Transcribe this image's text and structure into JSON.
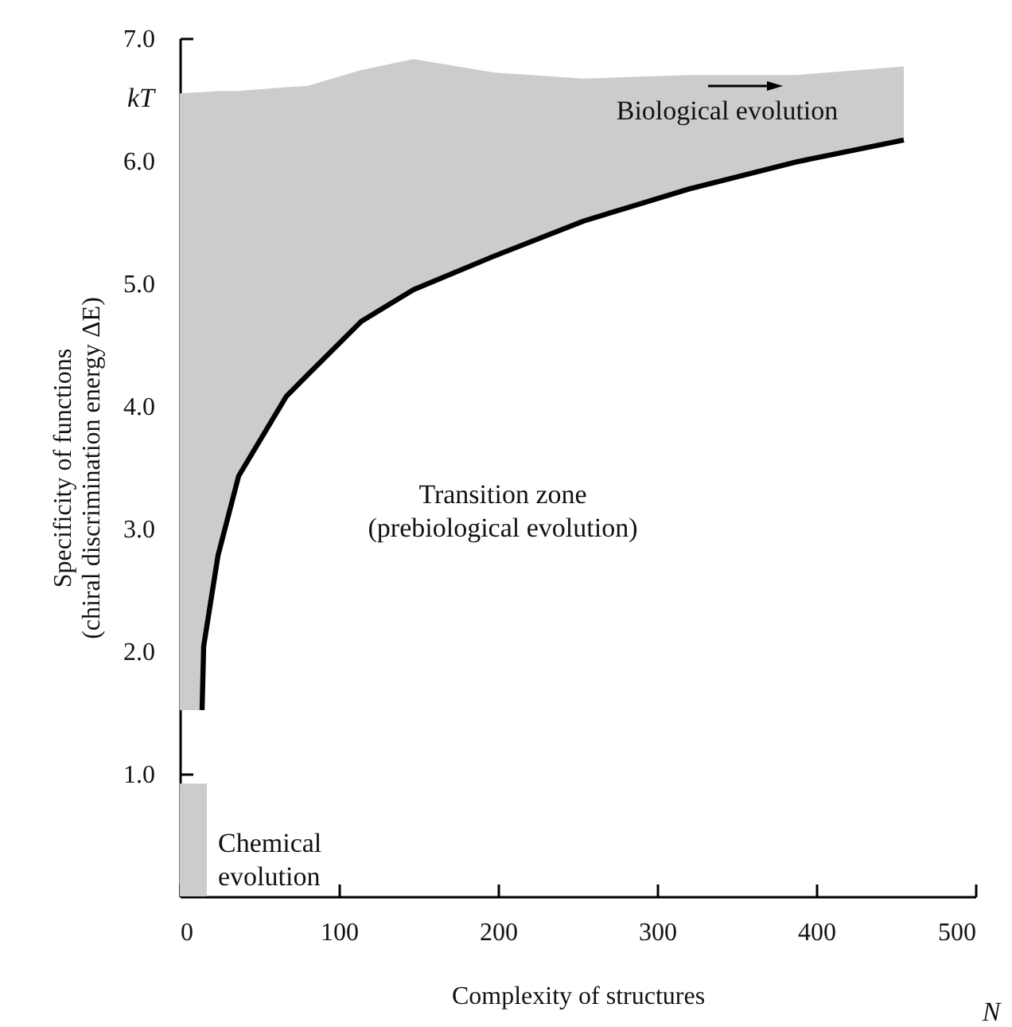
{
  "chart_data": {
    "type": "line",
    "xlabel": "Complexity of structures",
    "ylabel": "Specificity of functions\n(chiral discrimination energy ΔE)",
    "xlim": [
      0,
      500
    ],
    "ylim": [
      0,
      7
    ],
    "xticks": [
      0,
      100,
      200,
      300,
      400,
      500
    ],
    "yticks": [
      {
        "value": 1,
        "label": "1.0"
      },
      {
        "value": 2,
        "label": "2.0"
      },
      {
        "value": 3,
        "label": "3.0"
      },
      {
        "value": 4,
        "label": "4.0"
      },
      {
        "value": 5,
        "label": "5.0"
      },
      {
        "value": 6,
        "label": "6.0"
      },
      {
        "value": 7,
        "label": "7.0"
      }
    ],
    "grid": false,
    "marker": "none",
    "line_style": "solid",
    "series": [
      {
        "type": "area",
        "color": "#cccccc",
        "x": [
          0,
          17
        ],
        "values": [
          0.92,
          0.92
        ]
      },
      {
        "color": "#000000",
        "x": [
          0,
          14,
          15,
          24,
          37,
          67,
          80,
          114,
          147,
          197,
          254,
          320,
          387,
          455
        ],
        "values": [
          null,
          1.52,
          2.04,
          2.78,
          3.43,
          4.08,
          4.25,
          4.69,
          4.95,
          5.22,
          5.51,
          5.77,
          5.99,
          6.17
        ],
        "lower": [
          1.52,
          1.52,
          2.04,
          2.78,
          3.43,
          4.08,
          4.25,
          4.69,
          4.95,
          5.22,
          5.51,
          5.77,
          5.99,
          6.17
        ],
        "upper": [
          6.55,
          6.56,
          6.56,
          6.57,
          6.57,
          6.6,
          6.61,
          6.74,
          6.83,
          6.72,
          6.67,
          6.7,
          6.7,
          6.77
        ]
      }
    ],
    "annotations": [
      "kT",
      "N",
      "Biological evolution",
      "Transition zone\n(prebiological evolution)",
      "Chemical\nevolution"
    ]
  }
}
